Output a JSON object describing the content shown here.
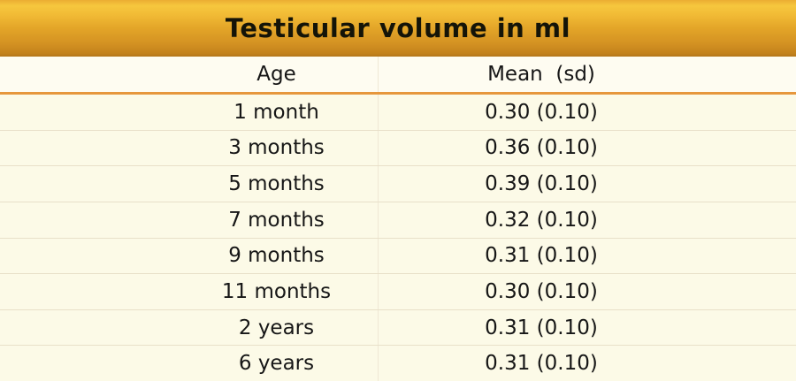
{
  "title": "Testicular volume in ml",
  "chart_data": {
    "type": "table",
    "title": "Testicular volume in ml",
    "columns": [
      "Age",
      "Mean  (sd)"
    ],
    "rows": [
      [
        "1 month",
        "0.30 (0.10)"
      ],
      [
        "3 months",
        "0.36 (0.10)"
      ],
      [
        "5 months",
        "0.39 (0.10)"
      ],
      [
        "7 months",
        "0.32 (0.10)"
      ],
      [
        "9 months",
        "0.31 (0.10)"
      ],
      [
        "11 months",
        "0.30 (0.10)"
      ],
      [
        "2 years",
        "0.31 (0.10)"
      ],
      [
        "6 years",
        "0.31 (0.10)"
      ]
    ],
    "units": "ml",
    "layout": {
      "header_band": "gold gradient",
      "grid": "horizontal separators + single vertical divider",
      "column_alignment": "center"
    }
  },
  "colors": {
    "band_gold_top": "#F6C73E",
    "band_gold_bottom": "#B3761A",
    "page_cream": "#FCFAE7",
    "header_row_cream": "#FEFCF1",
    "orange_rule": "#E6973C",
    "row_separator": "#E8E0C9",
    "column_divider": "#EFE8D5",
    "text": "#161616"
  }
}
